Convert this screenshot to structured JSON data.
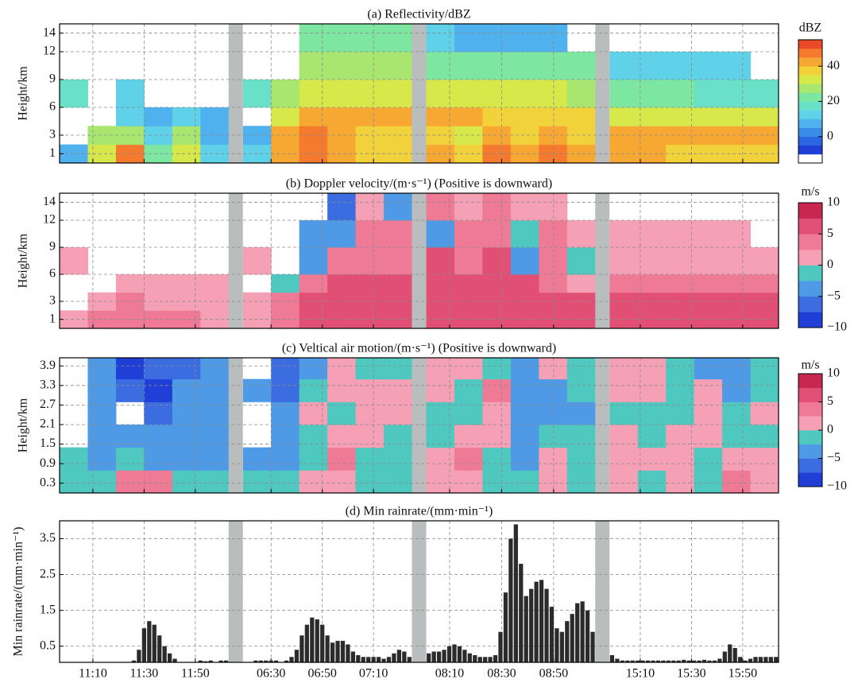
{
  "chart_data": [
    {
      "type": "heatmap",
      "title": "(a) Reflectivity/dBZ",
      "ylabel": "Height/km",
      "ylim": [
        0,
        15
      ],
      "yticks": [
        1,
        3,
        6,
        9,
        12,
        14
      ],
      "grid": true,
      "show_xtick_labels": false,
      "segments": [
        {
          "xlim": [
            "10:57",
            "12:03"
          ],
          "xticks": [
            "11:10",
            "11:30",
            "11:50"
          ]
        },
        {
          "xlim": [
            "06:19",
            "07:25"
          ],
          "xticks": [
            "06:30",
            "06:50",
            "07:10"
          ]
        },
        {
          "xlim": [
            "08:01",
            "09:06"
          ],
          "xticks": [
            "08:10",
            "08:30",
            "08:50"
          ]
        },
        {
          "xlim": [
            "14:58",
            "16:04"
          ],
          "xticks": [
            "15:10",
            "15:30",
            "15:50"
          ]
        }
      ],
      "y_edges": [
        0,
        2,
        4,
        6,
        9,
        12,
        15
      ],
      "values": [
        [
          [
            5,
            30,
            45,
            20,
            30,
            10
          ],
          [
            null,
            25,
            25,
            10,
            25,
            5
          ],
          [
            null,
            null,
            10,
            5,
            10,
            5
          ],
          [
            15,
            null,
            12,
            null,
            null,
            null
          ],
          [
            null,
            null,
            null,
            null,
            null,
            null
          ],
          [
            null,
            null,
            null,
            null,
            null,
            null
          ]
        ],
        [
          [
            10,
            40,
            45,
            40,
            35,
            35
          ],
          [
            5,
            40,
            45,
            40,
            35,
            35
          ],
          [
            null,
            30,
            40,
            40,
            40,
            40
          ],
          [
            15,
            25,
            30,
            30,
            30,
            30
          ],
          [
            null,
            null,
            25,
            25,
            25,
            25
          ],
          [
            null,
            null,
            20,
            20,
            20,
            20
          ]
        ],
        [
          [
            40,
            35,
            45,
            40,
            45,
            40
          ],
          [
            35,
            30,
            40,
            35,
            40,
            35
          ],
          [
            40,
            40,
            35,
            35,
            35,
            35
          ],
          [
            30,
            30,
            30,
            30,
            30,
            25
          ],
          [
            20,
            20,
            20,
            20,
            20,
            20
          ],
          [
            10,
            5,
            5,
            5,
            5,
            null
          ]
        ],
        [
          [
            40,
            40,
            35,
            35,
            35,
            35
          ],
          [
            40,
            40,
            40,
            40,
            40,
            40
          ],
          [
            30,
            30,
            30,
            30,
            30,
            30
          ],
          [
            20,
            20,
            20,
            18,
            18,
            18
          ],
          [
            12,
            12,
            12,
            12,
            12,
            null
          ],
          [
            null,
            null,
            null,
            null,
            null,
            null
          ]
        ]
      ],
      "colorbar": {
        "label": "dBZ",
        "zlim": [
          -15,
          55
        ],
        "ticks": [
          0,
          20,
          40
        ],
        "colors": [
          "#ffffff",
          "#1f3fd6",
          "#2a67e0",
          "#3a8de6",
          "#4fb1ee",
          "#5fd1e8",
          "#6be0c8",
          "#7de6a0",
          "#a9e670",
          "#d6e84a",
          "#f2d23a",
          "#f7a833",
          "#f57a2e",
          "#ea4a28"
        ]
      }
    },
    {
      "type": "heatmap",
      "title": "(b) Doppler velocity/(m·s⁻¹) (Positive is downward)",
      "ylabel": "Height/km",
      "ylim": [
        0,
        15
      ],
      "yticks": [
        1,
        3,
        6,
        9,
        12,
        14
      ],
      "grid": true,
      "show_xtick_labels": false,
      "segments": [
        {
          "xlim": [
            "10:57",
            "12:03"
          ],
          "xticks": [
            "11:10",
            "11:30",
            "11:50"
          ]
        },
        {
          "xlim": [
            "06:19",
            "07:25"
          ],
          "xticks": [
            "06:30",
            "06:50",
            "07:10"
          ]
        },
        {
          "xlim": [
            "08:01",
            "09:06"
          ],
          "xticks": [
            "08:10",
            "08:30",
            "08:50"
          ]
        },
        {
          "xlim": [
            "14:58",
            "16:04"
          ],
          "xticks": [
            "15:10",
            "15:30",
            "15:50"
          ]
        }
      ],
      "y_edges": [
        0,
        2,
        4,
        6,
        9,
        12,
        15
      ],
      "values": [
        [
          [
            2,
            3,
            3,
            3,
            3,
            2
          ],
          [
            null,
            2,
            3,
            2,
            2,
            2
          ],
          [
            null,
            null,
            1,
            2,
            1,
            1
          ],
          [
            2,
            null,
            null,
            null,
            null,
            null
          ],
          [
            null,
            null,
            null,
            null,
            null,
            null
          ],
          [
            null,
            null,
            null,
            null,
            null,
            null
          ]
        ],
        [
          [
            2,
            4,
            6,
            6,
            6,
            6
          ],
          [
            2,
            3,
            6,
            6,
            6,
            5
          ],
          [
            null,
            -2,
            3,
            5,
            5,
            5
          ],
          [
            2,
            null,
            -4,
            3,
            4,
            4
          ],
          [
            null,
            null,
            -5,
            -4,
            3,
            3
          ],
          [
            null,
            null,
            null,
            -6,
            2,
            -3
          ]
        ],
        [
          [
            6,
            5,
            6,
            5,
            6,
            5
          ],
          [
            6,
            6,
            6,
            5,
            6,
            5
          ],
          [
            6,
            6,
            5,
            6,
            3,
            2
          ],
          [
            5,
            4,
            5,
            -3,
            3,
            -2
          ],
          [
            -3,
            3,
            4,
            -2,
            3,
            2
          ],
          [
            3,
            2,
            3,
            2,
            2,
            null
          ]
        ],
        [
          [
            6,
            6,
            6,
            6,
            6,
            6
          ],
          [
            6,
            6,
            6,
            6,
            6,
            6
          ],
          [
            3,
            3,
            3,
            3,
            3,
            3
          ],
          [
            2,
            2,
            2,
            2,
            2,
            2
          ],
          [
            2,
            2,
            2,
            2,
            2,
            null
          ],
          [
            null,
            null,
            null,
            null,
            null,
            null
          ]
        ]
      ],
      "colorbar": {
        "label": "m/s",
        "zlim": [
          -10,
          10
        ],
        "ticks": [
          {
            "value": -10,
            "label": "−10"
          },
          {
            "value": -5,
            "label": "−5"
          },
          0,
          5,
          10
        ],
        "colors": [
          "#1f3fd6",
          "#3b6de0",
          "#4f9ae6",
          "#4fc8c0",
          "#f5a0b4",
          "#ee7a96",
          "#e24f74",
          "#c8284f"
        ]
      }
    },
    {
      "type": "heatmap",
      "title": "(c) Veltical air motion/(m·s⁻¹) (Positive is downward)",
      "ylabel": "Height/km",
      "ylim": [
        0,
        4.15
      ],
      "yticks": [
        0.3,
        0.9,
        1.5,
        2.1,
        2.7,
        3.3,
        3.9
      ],
      "grid": true,
      "show_xtick_labels": false,
      "segments": [
        {
          "xlim": [
            "10:57",
            "12:03"
          ],
          "xticks": [
            "11:10",
            "11:30",
            "11:50"
          ]
        },
        {
          "xlim": [
            "06:19",
            "07:25"
          ],
          "xticks": [
            "06:30",
            "06:50",
            "07:10"
          ]
        },
        {
          "xlim": [
            "08:01",
            "09:06"
          ],
          "xticks": [
            "08:10",
            "08:30",
            "08:50"
          ]
        },
        {
          "xlim": [
            "14:58",
            "16:04"
          ],
          "xticks": [
            "15:10",
            "15:30",
            "15:50"
          ]
        }
      ],
      "y_edges": [
        0,
        0.7,
        1.4,
        2.1,
        2.8,
        3.5,
        4.15
      ],
      "values": [
        [
          [
            -1,
            -1,
            3,
            4,
            -1,
            -1
          ],
          [
            -2,
            -3,
            -2,
            -3,
            -4,
            -3
          ],
          [
            null,
            -4,
            -4,
            -3,
            -3,
            -4
          ],
          [
            null,
            -4,
            null,
            -6,
            -4,
            -5
          ],
          [
            null,
            -3,
            -6,
            -8,
            -5,
            -4
          ],
          [
            null,
            -3,
            -8,
            -6,
            -6,
            -4
          ]
        ],
        [
          [
            -1,
            -2,
            2,
            2,
            -1,
            -1
          ],
          [
            -3,
            -4,
            -2,
            3,
            -1,
            -1
          ],
          [
            null,
            -5,
            -1,
            2,
            2,
            -1
          ],
          [
            null,
            -5,
            2,
            -1,
            2,
            2
          ],
          [
            -3,
            -6,
            -2,
            2,
            2,
            2
          ],
          [
            null,
            -7,
            -3,
            2,
            -1,
            -1
          ]
        ],
        [
          [
            2,
            2,
            -1,
            -1,
            2,
            -1
          ],
          [
            2,
            3,
            -1,
            -3,
            2,
            -1
          ],
          [
            -1,
            2,
            2,
            -4,
            -1,
            -1
          ],
          [
            -1,
            -1,
            2,
            -4,
            -3,
            -3
          ],
          [
            2,
            -1,
            3,
            -5,
            -3,
            -2
          ],
          [
            2,
            2,
            -1,
            -5,
            2,
            -1
          ]
        ],
        [
          [
            2,
            -1,
            2,
            -1,
            3,
            2
          ],
          [
            2,
            2,
            2,
            -1,
            2,
            2
          ],
          [
            2,
            -1,
            2,
            2,
            -1,
            -1
          ],
          [
            -1,
            -1,
            -1,
            2,
            -1,
            2
          ],
          [
            2,
            2,
            -1,
            2,
            -3,
            -1
          ],
          [
            2,
            2,
            -1,
            -3,
            -5,
            -1
          ]
        ]
      ],
      "colorbar": {
        "label": "m/s",
        "zlim": [
          -10,
          10
        ],
        "ticks": [
          {
            "value": -10,
            "label": "−10"
          },
          {
            "value": -5,
            "label": "−5"
          },
          0,
          5,
          10
        ],
        "colors": [
          "#1f3fd6",
          "#3b6de0",
          "#4f9ae6",
          "#4fc8c0",
          "#f5a0b4",
          "#ee7a96",
          "#e24f74",
          "#c8284f"
        ]
      }
    },
    {
      "type": "bar",
      "title": "(d) Min rainrate/(mm·min⁻¹)",
      "ylabel": "Min rainrate/(mm·min⁻¹)",
      "ylim": [
        0.05,
        4
      ],
      "yticks": [
        0.5,
        1.5,
        2.5,
        3.5
      ],
      "grid": true,
      "show_xtick_labels": true,
      "color": "#2b2b2b",
      "segments": [
        {
          "xlim": [
            "10:57",
            "12:03"
          ],
          "xticks": [
            "11:10",
            "11:30",
            "11:50"
          ]
        },
        {
          "xlim": [
            "06:19",
            "07:25"
          ],
          "xticks": [
            "06:30",
            "06:50",
            "07:10"
          ]
        },
        {
          "xlim": [
            "08:01",
            "09:06"
          ],
          "xticks": [
            "08:10",
            "08:30",
            "08:50"
          ]
        },
        {
          "xlim": [
            "14:58",
            "16:04"
          ],
          "xticks": [
            "15:10",
            "15:30",
            "15:50"
          ]
        }
      ],
      "values": [
        [
          0,
          0,
          0,
          0,
          0,
          0,
          0,
          0,
          0,
          0,
          0,
          0,
          0,
          0,
          0.1,
          0.4,
          1.0,
          1.2,
          1.1,
          0.8,
          0.5,
          0.3,
          0.15,
          0.05,
          0,
          0,
          0,
          0.1,
          0.08,
          0.1,
          0.05,
          0.1,
          0.1
        ],
        [
          0,
          0.05,
          0.1,
          0.1,
          0.1,
          0.1,
          0.1,
          0.05,
          0.1,
          0.2,
          0.4,
          0.8,
          1.1,
          1.3,
          1.25,
          1.1,
          0.8,
          0.6,
          0.65,
          0.65,
          0.55,
          0.35,
          0.25,
          0.2,
          0.2,
          0.2,
          0.2,
          0.15,
          0.2,
          0.3,
          0.4,
          0.35,
          0.2
        ],
        [
          0.3,
          0.35,
          0.35,
          0.4,
          0.5,
          0.55,
          0.5,
          0.4,
          0.3,
          0.25,
          0.2,
          0.2,
          0.2,
          0.25,
          0.9,
          2.0,
          3.5,
          3.9,
          2.8,
          1.9,
          2.1,
          2.3,
          2.35,
          2.1,
          1.6,
          1.0,
          0.9,
          1.2,
          1.4,
          1.7,
          1.75,
          1.5,
          0.9
        ],
        [
          0.25,
          0.15,
          0.1,
          0.1,
          0.1,
          0.1,
          0.1,
          0.1,
          0.1,
          0.1,
          0.1,
          0.1,
          0.1,
          0.1,
          0.12,
          0.1,
          0.1,
          0.1,
          0.12,
          0.1,
          0.1,
          0.15,
          0.35,
          0.55,
          0.45,
          0.2,
          0.1,
          0.15,
          0.2,
          0.2,
          0.2,
          0.2,
          0.2
        ]
      ]
    }
  ]
}
